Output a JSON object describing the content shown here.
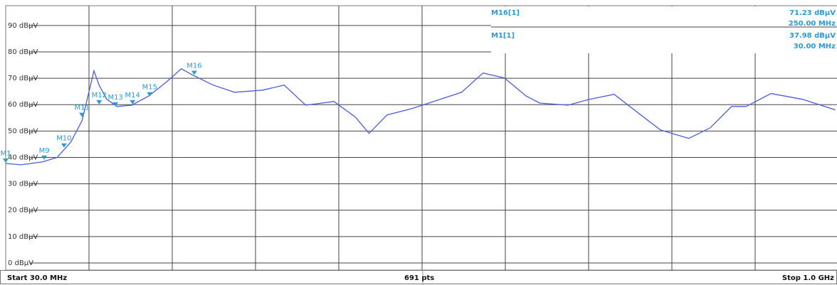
{
  "chart_data": {
    "type": "line",
    "x": [
      30,
      48,
      73,
      90,
      106,
      119,
      127,
      133,
      139,
      148,
      160,
      177,
      197,
      218,
      235,
      247,
      272,
      297,
      330,
      355,
      380,
      413,
      438,
      454,
      475,
      504,
      537,
      562,
      587,
      612,
      637,
      653,
      686,
      711,
      740,
      769,
      794,
      827,
      852,
      877,
      894,
      923,
      960,
      998
    ],
    "values": [
      37.7,
      37.2,
      38.3,
      40,
      45.8,
      53.9,
      64.7,
      72.8,
      67.4,
      62,
      59.3,
      59.8,
      63.3,
      68.7,
      73.6,
      71.4,
      67.4,
      64.7,
      65.5,
      67.4,
      59.8,
      61.2,
      55.3,
      49.1,
      56.1,
      58.5,
      62,
      64.7,
      72,
      70.1,
      63.3,
      60.6,
      59.8,
      62,
      63.9,
      56.6,
      50.4,
      47.2,
      51.2,
      59.3,
      59.3,
      64.2,
      62,
      58
    ],
    "color": "#4a5ce0",
    "xlim": [
      30,
      1000
    ],
    "ylim": [
      -2.7,
      97.5
    ],
    "yticks": [
      {
        "value": 0,
        "label": "0 dBµV"
      },
      {
        "value": 10,
        "label": "10 dBµV"
      },
      {
        "value": 20,
        "label": "20 dBµV"
      },
      {
        "value": 30,
        "label": "30 dBµV"
      },
      {
        "value": 40,
        "label": "40 dBµV"
      },
      {
        "value": 50,
        "label": "50 dBµV"
      },
      {
        "value": 60,
        "label": "60 dBµV"
      },
      {
        "value": 70,
        "label": "70 dBµV"
      },
      {
        "value": 80,
        "label": "80 dBµV"
      },
      {
        "value": 90,
        "label": "90 dBµV"
      }
    ],
    "xgrid_divisions": 10,
    "grid": true,
    "marker_color": "#2a9ad8",
    "markers": [
      {
        "name": "M1",
        "x": 30,
        "y": 37.98
      },
      {
        "name": "M9",
        "x": 75,
        "y": 39.1
      },
      {
        "name": "M10",
        "x": 98,
        "y": 43.7
      },
      {
        "name": "M11",
        "x": 119,
        "y": 55.3
      },
      {
        "name": "M12",
        "x": 139,
        "y": 60.1
      },
      {
        "name": "M13",
        "x": 158,
        "y": 59.3
      },
      {
        "name": "M14",
        "x": 178,
        "y": 60.1
      },
      {
        "name": "M15",
        "x": 198,
        "y": 63.1
      },
      {
        "name": "M16",
        "x": 250,
        "y": 71.23
      }
    ],
    "readout": [
      {
        "marker": "M16[1]",
        "level": "71.23 dBµV",
        "freq": "250.00 MHz"
      },
      {
        "marker": "M1[1]",
        "level": "37.98 dBµV",
        "freq": "30.00 MHz"
      }
    ],
    "footer": {
      "start": "Start 30.0 MHz",
      "points": "691 pts",
      "stop": "Stop 1.0 GHz"
    }
  }
}
